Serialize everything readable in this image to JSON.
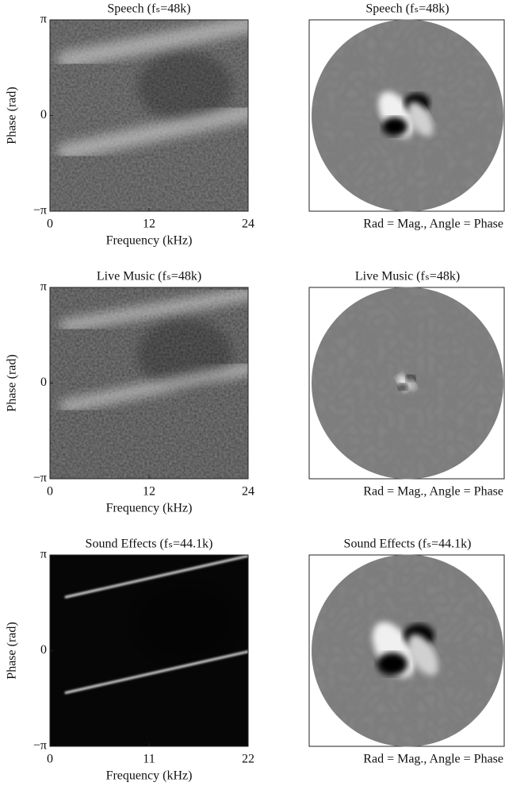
{
  "rows": [
    {
      "heatmap": {
        "title": "Speech (fₛ=48k)",
        "xlabel": "Frequency (kHz)",
        "ylabel": "Phase (rad)",
        "xlim": [
          0,
          24
        ],
        "xticks": [
          0,
          12,
          24
        ],
        "ylim": [
          -3.1416,
          3.1416
        ],
        "yticks": [
          {
            "value": -3.1416,
            "label": "−π"
          },
          0,
          {
            "value": 3.1416,
            "label": "π"
          }
        ]
      },
      "polar": {
        "title": "Speech (fₛ=48k)",
        "caption": "Rad = Mag., Angle = Phase"
      }
    },
    {
      "heatmap": {
        "title": "Live Music (fₛ=48k)",
        "xlabel": "Frequency (kHz)",
        "ylabel": "Phase (rad)",
        "xlim": [
          0,
          24
        ],
        "xticks": [
          0,
          12,
          24
        ],
        "ylim": [
          -3.1416,
          3.1416
        ],
        "yticks": [
          {
            "value": -3.1416,
            "label": "−π"
          },
          0,
          {
            "value": 3.1416,
            "label": "π"
          }
        ]
      },
      "polar": {
        "title": "Live Music (fₛ=48k)",
        "caption": "Rad = Mag., Angle = Phase"
      }
    },
    {
      "heatmap": {
        "title": "Sound Effects (fₛ=44.1k)",
        "xlabel": "Frequency (kHz)",
        "ylabel": "Phase (rad)",
        "xlim": [
          0,
          22
        ],
        "xticks": [
          0,
          11,
          22
        ],
        "ylim": [
          -3.1416,
          3.1416
        ],
        "yticks": [
          {
            "value": -3.1416,
            "label": "−π"
          },
          0,
          {
            "value": 3.1416,
            "label": "π"
          }
        ]
      },
      "polar": {
        "title": "Sound Effects (fₛ=44.1k)",
        "caption": "Rad = Mag., Angle = Phase"
      }
    }
  ]
}
